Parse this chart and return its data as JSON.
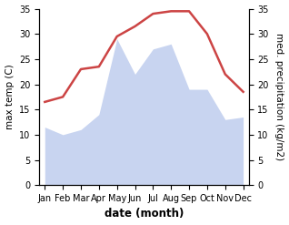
{
  "months": [
    "Jan",
    "Feb",
    "Mar",
    "Apr",
    "May",
    "Jun",
    "Jul",
    "Aug",
    "Sep",
    "Oct",
    "Nov",
    "Dec"
  ],
  "max_temp": [
    16.5,
    17.5,
    23.0,
    23.5,
    29.5,
    31.5,
    34.0,
    34.5,
    34.5,
    30.0,
    22.0,
    18.5
  ],
  "precipitation": [
    11.5,
    10.0,
    11.0,
    14.0,
    29.0,
    22.0,
    27.0,
    28.0,
    19.0,
    19.0,
    13.0,
    13.5
  ],
  "temp_color": "#cc4444",
  "precip_fill_color": "#c8d4f0",
  "ylim_left": [
    0,
    35
  ],
  "ylim_right": [
    0,
    35
  ],
  "xlabel": "date (month)",
  "ylabel_left": "max temp (C)",
  "ylabel_right": "med. precipitation (kg/m2)",
  "yticks": [
    0,
    5,
    10,
    15,
    20,
    25,
    30,
    35
  ],
  "tick_fontsize": 7.0,
  "label_fontsize": 7.5,
  "xlabel_fontsize": 8.5
}
